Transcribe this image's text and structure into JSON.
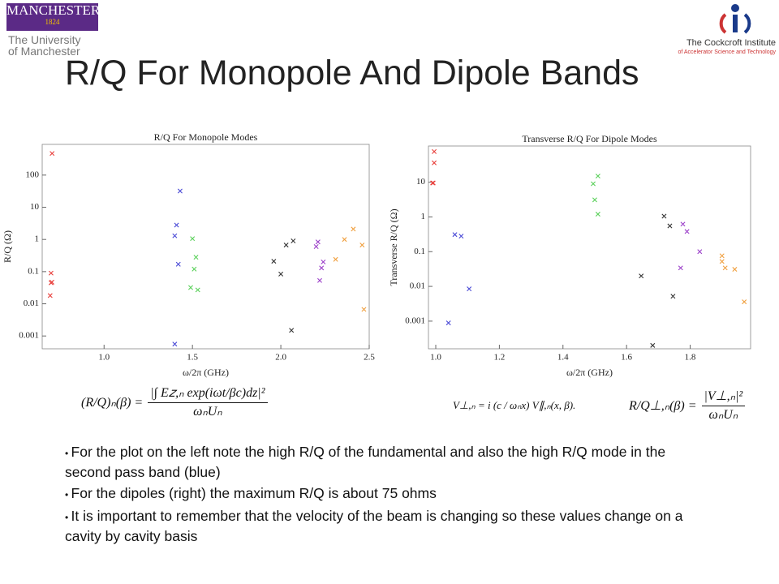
{
  "header": {
    "title": "R/Q For Monopole And Dipole Bands",
    "logo_left": {
      "name": "MANCHESTER",
      "year": "1824",
      "line1": "The University",
      "line2": "of Manchester"
    },
    "logo_right": {
      "name": "The Cockcroft Institute",
      "subtitle": "of Accelerator Science and Technology"
    }
  },
  "chart_data": [
    {
      "type": "scatter",
      "title": "R/Q For Monopole Modes",
      "x_label": "ω/2π (GHz)",
      "y_label": "R/Q (Ω)",
      "xlim": [
        0.65,
        2.5
      ],
      "ylim": [
        0.0004,
        900
      ],
      "log_y": true,
      "marker": "x",
      "xticks": [
        {
          "value": 1,
          "label": "1.0"
        },
        1.5,
        {
          "value": 2,
          "label": "2.0"
        },
        2.5
      ],
      "yticks": [
        0.001,
        0.01,
        0.1,
        1,
        10,
        100
      ],
      "series": [
        {
          "color": "#e8403c",
          "x": [
            0.706,
            0.7,
            0.7,
            0.705,
            0.695
          ],
          "values": [
            470,
            0.09,
            0.045,
            0.047,
            0.018
          ]
        },
        {
          "color": "#4a4ad6",
          "x": [
            1.43,
            1.41,
            1.4,
            1.42,
            1.4
          ],
          "values": [
            32,
            2.8,
            1.3,
            0.17,
            0.00056
          ]
        },
        {
          "color": "#5ad05a",
          "x": [
            1.5,
            1.52,
            1.51,
            1.49,
            1.53
          ],
          "values": [
            1.06,
            0.28,
            0.12,
            0.032,
            0.027
          ]
        },
        {
          "color": "#333333",
          "x": [
            1.96,
            2.0,
            2.03,
            2.07,
            2.06
          ],
          "values": [
            0.21,
            0.084,
            0.67,
            0.9,
            0.0015
          ]
        },
        {
          "color": "#9b3fc9",
          "x": [
            2.21,
            2.2,
            2.24,
            2.23,
            2.22
          ],
          "values": [
            0.84,
            0.6,
            0.2,
            0.13,
            0.053
          ]
        },
        {
          "color": "#f0a040",
          "x": [
            2.31,
            2.36,
            2.41,
            2.46,
            2.47
          ],
          "values": [
            0.24,
            1.0,
            2.1,
            0.67,
            0.0067
          ]
        }
      ]
    },
    {
      "type": "scatter",
      "title": "Transverse R/Q For Dipole Modes",
      "x_label": "ω/2π (GHz)",
      "y_label": "Transverse R/Q (Ω)",
      "xlim": [
        0.977,
        1.99
      ],
      "ylim": [
        0.00016,
        110
      ],
      "log_y": true,
      "marker": "x",
      "xticks": [
        {
          "value": 1,
          "label": "1.0"
        },
        1.2,
        1.4,
        1.6,
        1.8
      ],
      "yticks": [
        0.001,
        0.01,
        0.1,
        1,
        10
      ],
      "series": [
        {
          "color": "#e8403c",
          "x": [
            0.995,
            0.995,
            0.99,
            0.992
          ],
          "values": [
            76,
            36,
            9.5,
            9.5
          ]
        },
        {
          "color": "#4a4ad6",
          "x": [
            1.06,
            1.08,
            1.105,
            1.04
          ],
          "values": [
            0.31,
            0.28,
            0.0085,
            0.00089
          ]
        },
        {
          "color": "#5ad05a",
          "x": [
            1.51,
            1.495,
            1.5,
            1.51
          ],
          "values": [
            15,
            9,
            3.1,
            1.2
          ]
        },
        {
          "color": "#333333",
          "x": [
            1.718,
            1.736,
            1.646,
            1.746,
            1.682
          ],
          "values": [
            1.05,
            0.55,
            0.02,
            0.0052,
            0.0002
          ]
        },
        {
          "color": "#9b3fc9",
          "x": [
            1.777,
            1.79,
            1.83,
            1.77
          ],
          "values": [
            0.62,
            0.38,
            0.1,
            0.034
          ]
        },
        {
          "color": "#f0a040",
          "x": [
            1.9,
            1.9,
            1.91,
            1.94,
            1.97
          ],
          "values": [
            0.076,
            0.052,
            0.034,
            0.031,
            0.0036
          ]
        }
      ]
    }
  ],
  "formulas": [
    {
      "lhs": "(R/Q)ₙ(β) =",
      "numerator": "|∫ E𝑧,ₙ exp(iωt/βc)dz|²",
      "denominator": "ωₙUₙ"
    },
    {
      "text": "V⊥,ₙ = i (c / ωₙx) V∥,ₙ(x, β)."
    },
    {
      "lhs": "R/Q⊥,ₙ(β) =",
      "numerator": "|V⊥,ₙ|²",
      "denominator": "ωₙUₙ"
    }
  ],
  "bullets": [
    "For the plot on the left note the high R/Q of the fundamental and also the high R/Q mode in the second pass band (blue)",
    "For the dipoles (right) the maximum R/Q is about 75 ohms",
    "It is important to remember that the velocity of the beam is changing so these values change on a cavity by cavity basis"
  ]
}
